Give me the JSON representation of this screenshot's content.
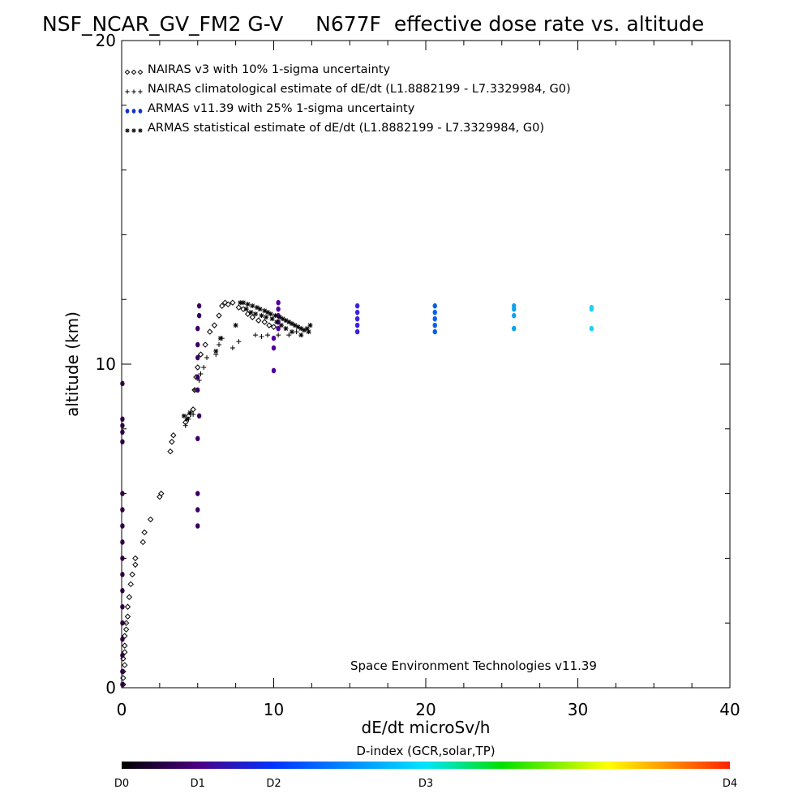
{
  "chart_data": {
    "type": "scatter",
    "title": "NSF_NCAR_GV_FM2 G-V     N677F  effective dose rate vs. altitude",
    "xlabel": "dE/dt microSv/h",
    "ylabel": "altitude (km)",
    "xlim": [
      0,
      40
    ],
    "ylim": [
      0,
      20
    ],
    "x_ticks": [
      "0",
      "10",
      "20",
      "30",
      "40"
    ],
    "y_ticks": [
      "0",
      "10",
      "20"
    ],
    "legend_placement": "top-left",
    "credit": "Space Environment Technologies v11.39",
    "colorbar": {
      "title": "D-index (GCR,solar,TP)",
      "labels": [
        {
          "text": "D0",
          "value": 0
        },
        {
          "text": "D1",
          "value": 1
        },
        {
          "text": "D2",
          "value": 2
        },
        {
          "text": "D3",
          "value": 3
        },
        {
          "text": "D4",
          "value": 4
        }
      ],
      "label_positions": [
        0,
        0.125,
        0.25,
        0.5,
        1.0
      ],
      "colors": [
        "#000000",
        "#4b0082",
        "#0033ff",
        "#00e5ff",
        "#00e000",
        "#ffff00",
        "#ff2000"
      ]
    },
    "series": [
      {
        "name": "NAIRAS v3 with 10% 1-sigma uncertainty",
        "marker": "diamond",
        "color": "#000000",
        "points": [
          [
            0.1,
            0.1
          ],
          [
            0.1,
            0.3
          ],
          [
            0.1,
            0.5
          ],
          [
            0.2,
            0.7
          ],
          [
            0.1,
            0.9
          ],
          [
            0.2,
            1.1
          ],
          [
            0.2,
            1.3
          ],
          [
            0.2,
            1.6
          ],
          [
            0.3,
            1.8
          ],
          [
            0.3,
            2.0
          ],
          [
            0.4,
            2.2
          ],
          [
            0.4,
            2.5
          ],
          [
            0.5,
            2.8
          ],
          [
            0.6,
            3.2
          ],
          [
            0.7,
            3.5
          ],
          [
            0.9,
            3.8
          ],
          [
            0.9,
            4.0
          ],
          [
            1.4,
            4.5
          ],
          [
            1.5,
            4.8
          ],
          [
            1.9,
            5.2
          ],
          [
            2.5,
            5.9
          ],
          [
            2.6,
            6.0
          ],
          [
            3.2,
            7.3
          ],
          [
            3.3,
            7.6
          ],
          [
            3.4,
            7.8
          ],
          [
            4.2,
            8.2
          ],
          [
            4.4,
            8.4
          ],
          [
            4.7,
            8.6
          ],
          [
            4.8,
            9.2
          ],
          [
            4.9,
            9.6
          ],
          [
            5.0,
            9.9
          ],
          [
            5.2,
            10.3
          ],
          [
            5.5,
            10.6
          ],
          [
            5.8,
            11.0
          ],
          [
            6.1,
            11.2
          ],
          [
            6.4,
            11.5
          ],
          [
            6.6,
            11.8
          ],
          [
            6.8,
            11.9
          ],
          [
            7.0,
            11.85
          ],
          [
            7.3,
            11.9
          ],
          [
            7.7,
            11.75
          ],
          [
            8.0,
            11.7
          ],
          [
            8.3,
            11.55
          ],
          [
            8.6,
            11.45
          ],
          [
            9.0,
            11.35
          ],
          [
            9.4,
            11.3
          ],
          [
            9.7,
            11.2
          ],
          [
            10.0,
            11.15
          ]
        ]
      },
      {
        "name": "NAIRAS climatological estimate of dE/dt (L1.8882199 - L7.3329984, G0)",
        "marker": "plus",
        "color": "#000000",
        "points": [
          [
            4.2,
            8.1
          ],
          [
            4.4,
            8.3
          ],
          [
            4.7,
            8.45
          ],
          [
            4.8,
            9.2
          ],
          [
            5.1,
            9.5
          ],
          [
            5.2,
            9.7
          ],
          [
            5.4,
            9.9
          ],
          [
            5.6,
            10.2
          ],
          [
            6.2,
            10.3
          ],
          [
            6.4,
            10.6
          ],
          [
            6.6,
            10.8
          ],
          [
            7.3,
            10.5
          ],
          [
            7.7,
            10.7
          ],
          [
            8.8,
            10.9
          ],
          [
            9.2,
            10.85
          ],
          [
            9.6,
            10.9
          ],
          [
            10.3,
            10.9
          ],
          [
            11.0,
            10.9
          ],
          [
            11.5,
            11.0
          ]
        ]
      },
      {
        "name": "ARMAS v11.39 with 25% 1-sigma uncertainty",
        "marker": "dot",
        "color": "#1030d0",
        "points": [
          [
            0.05,
            9.4
          ],
          [
            0.05,
            8.3
          ],
          [
            0.05,
            8.1
          ],
          [
            0.05,
            7.9
          ],
          [
            0.05,
            7.6
          ],
          [
            0.05,
            6.0
          ],
          [
            0.05,
            5.5
          ],
          [
            0.05,
            5.0
          ],
          [
            0.05,
            4.5
          ],
          [
            0.05,
            4.0
          ],
          [
            0.05,
            3.5
          ],
          [
            0.05,
            3.0
          ],
          [
            0.05,
            2.5
          ],
          [
            0.05,
            2.0
          ],
          [
            0.05,
            1.5
          ],
          [
            0.05,
            1.0
          ],
          [
            0.05,
            0.5
          ],
          [
            0.05,
            0.1
          ],
          [
            5.0,
            5.0
          ],
          [
            5.0,
            5.5
          ],
          [
            5.0,
            6.0
          ],
          [
            5.0,
            7.7
          ],
          [
            5.1,
            8.4
          ],
          [
            5.0,
            9.2
          ],
          [
            5.0,
            9.6
          ],
          [
            5.0,
            10.2
          ],
          [
            5.0,
            10.6
          ],
          [
            5.0,
            11.1
          ],
          [
            5.1,
            11.5
          ],
          [
            5.1,
            11.8
          ],
          [
            10.0,
            9.8
          ],
          [
            10.0,
            10.5
          ],
          [
            10.0,
            10.8
          ],
          [
            10.3,
            11.1
          ],
          [
            10.3,
            11.3
          ],
          [
            10.3,
            11.5
          ],
          [
            10.3,
            11.7
          ],
          [
            10.3,
            11.9
          ],
          [
            15.5,
            11.0
          ],
          [
            15.5,
            11.2
          ],
          [
            15.5,
            11.4
          ],
          [
            15.5,
            11.6
          ],
          [
            15.5,
            11.8
          ],
          [
            20.6,
            11.0
          ],
          [
            20.6,
            11.2
          ],
          [
            20.6,
            11.4
          ],
          [
            20.6,
            11.6
          ],
          [
            20.6,
            11.8
          ],
          [
            25.8,
            11.1
          ],
          [
            25.8,
            11.5
          ],
          [
            25.8,
            11.7
          ],
          [
            25.8,
            11.8
          ],
          [
            30.9,
            11.1
          ],
          [
            30.9,
            11.7
          ],
          [
            30.9,
            11.75
          ]
        ],
        "point_colors": [
          "#300040",
          "#300040",
          "#300040",
          "#300040",
          "#300040",
          "#300040",
          "#300040",
          "#300040",
          "#300040",
          "#300040",
          "#300040",
          "#300040",
          "#300040",
          "#300040",
          "#300040",
          "#300040",
          "#300040",
          "#300040",
          "#3a0060",
          "#3a0060",
          "#3a0060",
          "#3a0060",
          "#3a0060",
          "#3a0060",
          "#3a0060",
          "#3a0060",
          "#3a0060",
          "#3a0060",
          "#3a0060",
          "#3a0060",
          "#5000a0",
          "#5000a0",
          "#5000a0",
          "#5000a0",
          "#5000a0",
          "#5000a0",
          "#5000a0",
          "#5000a0",
          "#3a20e0",
          "#3a20e0",
          "#3a20e0",
          "#3a20e0",
          "#3a20e0",
          "#0a60e8",
          "#0a60e8",
          "#0a60e8",
          "#0a60e8",
          "#0a60e8",
          "#10a0f0",
          "#10a0f0",
          "#10a0f0",
          "#10a0f0",
          "#20d0f0",
          "#20d0f0",
          "#20d0f0"
        ]
      },
      {
        "name": "ARMAS statistical estimate of dE/dt (L1.8882199 - L7.3329984, G0)",
        "marker": "asterisk",
        "color": "#000000",
        "points": [
          [
            4.1,
            8.4
          ],
          [
            4.3,
            8.3
          ],
          [
            4.5,
            8.5
          ],
          [
            6.2,
            10.4
          ],
          [
            6.5,
            10.8
          ],
          [
            7.5,
            11.2
          ],
          [
            7.8,
            11.9
          ],
          [
            8.0,
            11.9
          ],
          [
            8.3,
            11.85
          ],
          [
            8.6,
            11.8
          ],
          [
            8.9,
            11.75
          ],
          [
            9.1,
            11.7
          ],
          [
            9.4,
            11.65
          ],
          [
            9.6,
            11.6
          ],
          [
            9.8,
            11.55
          ],
          [
            10.1,
            11.5
          ],
          [
            10.4,
            11.45
          ],
          [
            10.6,
            11.4
          ],
          [
            10.8,
            11.35
          ],
          [
            11.0,
            11.3
          ],
          [
            11.2,
            11.25
          ],
          [
            11.4,
            11.2
          ],
          [
            11.6,
            11.15
          ],
          [
            11.8,
            11.1
          ],
          [
            12.0,
            11.05
          ],
          [
            12.3,
            11.0
          ],
          [
            8.2,
            11.7
          ],
          [
            8.5,
            11.6
          ],
          [
            8.8,
            11.55
          ],
          [
            9.2,
            11.5
          ],
          [
            9.5,
            11.45
          ],
          [
            9.9,
            11.4
          ],
          [
            10.2,
            11.3
          ],
          [
            10.5,
            11.2
          ],
          [
            10.8,
            11.1
          ],
          [
            11.2,
            11.0
          ],
          [
            11.8,
            10.9
          ],
          [
            12.2,
            11.1
          ],
          [
            12.4,
            11.2
          ]
        ]
      }
    ]
  }
}
